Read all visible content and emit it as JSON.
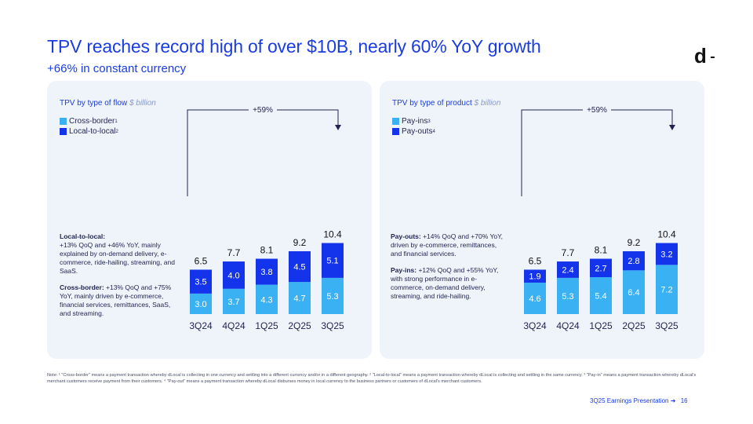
{
  "header": {
    "title": "TPV reaches record high of over $10B, nearly 60% YoY growth",
    "subtitle": "+66% in constant currency",
    "logo": "d"
  },
  "colors": {
    "accent": "#1a3ce0",
    "light_series": "#3ab1f3",
    "dark_series": "#1434eb",
    "panel_bg": "#eff3fa"
  },
  "left_panel": {
    "title": "TPV by type of flow",
    "unit": "$ billion",
    "legend": [
      {
        "label": "Cross-border",
        "sup": "1"
      },
      {
        "label": "Local-to-local",
        "sup": "2"
      }
    ],
    "growth": "+59%",
    "desc": [
      {
        "heading": "Local-to-local:",
        "text": "+13% QoQ and +46% YoY, mainly explained by on-demand delivery, e-commerce, ride-hailing, streaming, and SaaS."
      },
      {
        "heading": "Cross-border:",
        "text": " +13% QoQ and +75% YoY, mainly driven by e-commerce, financial services, remittances, SaaS, and streaming."
      }
    ]
  },
  "right_panel": {
    "title": "TPV by type of product",
    "unit": "$ billion",
    "legend": [
      {
        "label": "Pay-ins",
        "sup": "3"
      },
      {
        "label": "Pay-outs",
        "sup": "4"
      }
    ],
    "growth": "+59%",
    "desc": [
      {
        "heading": "Pay-outs:",
        "text": " +14% QoQ and +70% YoY, driven by e-commerce, remittances, and financial services."
      },
      {
        "heading": "Pay-ins:",
        "text": " +12% QoQ and +55% YoY, with strong performance in e-commerce, on-demand delivery, streaming, and ride-hailing."
      }
    ]
  },
  "chart_data": [
    {
      "type": "bar",
      "title": "TPV by type of flow",
      "unit": "$ billion",
      "categories": [
        "3Q24",
        "4Q24",
        "1Q25",
        "2Q25",
        "3Q25"
      ],
      "series": [
        {
          "name": "Cross-border",
          "values": [
            "3.0",
            "3.7",
            "4.3",
            "4.7",
            "5.3"
          ]
        },
        {
          "name": "Local-to-local",
          "values": [
            "3.5",
            "4.0",
            "3.8",
            "4.5",
            "5.1"
          ]
        }
      ],
      "totals": [
        "6.5",
        "7.7",
        "8.1",
        "9.2",
        "10.4"
      ],
      "annotation": "+59%",
      "ylim": [
        0,
        11
      ]
    },
    {
      "type": "bar",
      "title": "TPV by type of product",
      "unit": "$ billion",
      "categories": [
        "3Q24",
        "4Q24",
        "1Q25",
        "2Q25",
        "3Q25"
      ],
      "series": [
        {
          "name": "Pay-ins",
          "values": [
            "4.6",
            "5.3",
            "5.4",
            "6.4",
            "7.2"
          ]
        },
        {
          "name": "Pay-outs",
          "values": [
            "1.9",
            "2.4",
            "2.7",
            "2.8",
            "3.2"
          ]
        }
      ],
      "totals": [
        "6.5",
        "7.7",
        "8.1",
        "9.2",
        "10.4"
      ],
      "annotation": "+59%",
      "ylim": [
        0,
        11
      ]
    }
  ],
  "note": "Note: ¹ \"Cross-border\" means a payment transaction whereby dLocal is collecting in one currency and settling into a different currency and/or in a different geography. ² \"Local-to-local\" means a payment transaction whereby dLocal is collecting and settling in the same currency. ³ \"Pay-in\" means a payment transaction whereby dLocal's merchant customers receive payment from their customers. ⁴ \"Pay-out\" means a payment transaction whereby dLocal disburses money in local currency to the business partners or customers of dLocal's merchant customers.",
  "footer": {
    "text": "3Q25 Earnings Presentation",
    "arrow": "➜",
    "page": "16"
  }
}
